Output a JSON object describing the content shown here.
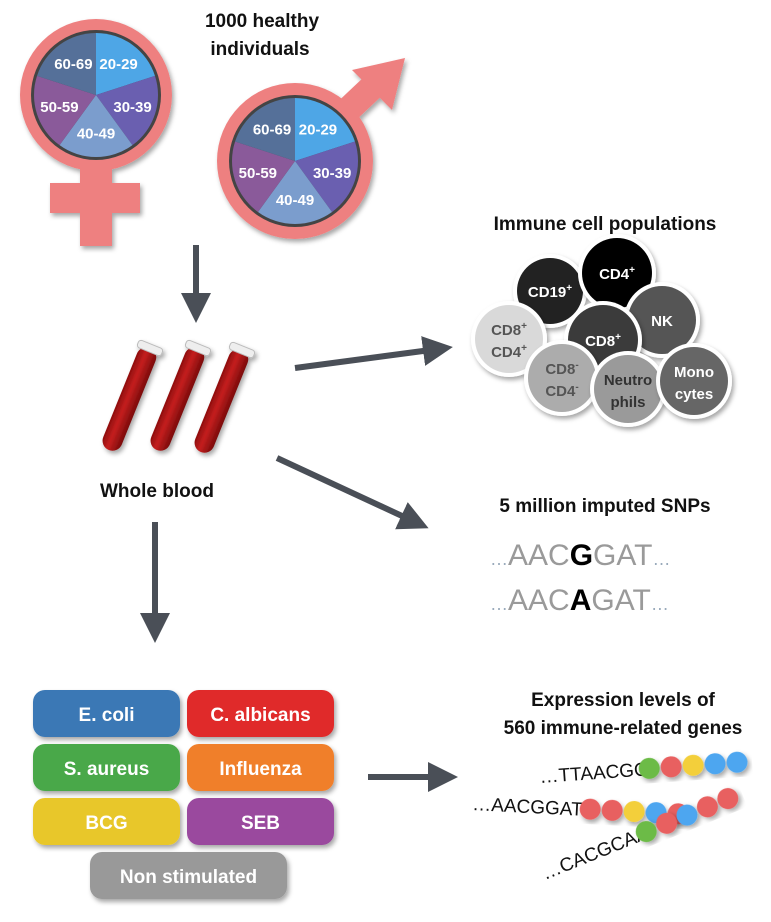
{
  "cohort": {
    "title_line1": "1000 healthy",
    "title_line2": "individuals",
    "age_groups": [
      "20-29",
      "30-39",
      "40-49",
      "50-59",
      "60-69"
    ],
    "age_colors": [
      "#4ea6e6",
      "#6a5fb0",
      "#7b9dcd",
      "#8a5a9a",
      "#557099"
    ],
    "symbol_color": "#ee8080"
  },
  "blood": {
    "label": "Whole blood"
  },
  "immune_cells": {
    "title": "Immune cell populations",
    "cells": [
      {
        "line1": "CD19",
        "sup1": "+",
        "line2": "",
        "sup2": "",
        "fill": "#222222",
        "text": "#ffffff"
      },
      {
        "line1": "CD4",
        "sup1": "+",
        "line2": "",
        "sup2": "",
        "fill": "#000000",
        "text": "#ffffff"
      },
      {
        "line1": "NK",
        "sup1": "",
        "line2": "",
        "sup2": "",
        "fill": "#555555",
        "text": "#ffffff"
      },
      {
        "line1": "CD8",
        "sup1": "+",
        "line2": "CD4",
        "sup2": "+",
        "fill": "#d9d9d9",
        "text": "#555555"
      },
      {
        "line1": "CD8",
        "sup1": "+",
        "line2": "",
        "sup2": "",
        "fill": "#3a3a3a",
        "text": "#ffffff"
      },
      {
        "line1": "CD8",
        "sup1": "-",
        "line2": "CD4",
        "sup2": "-",
        "fill": "#acacac",
        "text": "#555555"
      },
      {
        "line1": "Neutro",
        "sup1": "",
        "line2": "phils",
        "sup2": "",
        "fill": "#9a9a9a",
        "text": "#333333"
      },
      {
        "line1": "Mono",
        "sup1": "",
        "line2": "cytes",
        "sup2": "",
        "fill": "#666666",
        "text": "#ffffff"
      }
    ]
  },
  "snps": {
    "title": "5 million imputed SNPs",
    "seq1": {
      "prefix": "…",
      "left": "AAC",
      "allele": "G",
      "right": "GAT",
      "suffix": "…"
    },
    "seq2": {
      "prefix": "…",
      "left": "AAC",
      "allele": "A",
      "right": "GAT",
      "suffix": "…"
    }
  },
  "stimulations": [
    {
      "label": "E. coli",
      "color": "#3a78b5"
    },
    {
      "label": "C. albicans",
      "color": "#e02a2a"
    },
    {
      "label": "S. aureus",
      "color": "#4aa84a"
    },
    {
      "label": "Influenza",
      "color": "#f07f2a"
    },
    {
      "label": "BCG",
      "color": "#e8c72a"
    },
    {
      "label": "SEB",
      "color": "#9a4a9e"
    },
    {
      "label": "Non stimulated",
      "color": "#999999"
    }
  ],
  "expression": {
    "title_line1": "Expression levels of",
    "title_line2": "560 immune-related genes",
    "rows": [
      {
        "seq": "…TTAACGG",
        "beads": [
          "#6cbb47",
          "#e86060",
          "#f3cf3a",
          "#4ea6f0",
          "#4ea6f0"
        ]
      },
      {
        "seq": "…AACGGAT",
        "beads": [
          "#e86060",
          "#e86060",
          "#f3cf3a",
          "#4ea6f0",
          "#e86060"
        ]
      },
      {
        "seq": "…CACGCAA",
        "beads": [
          "#6cbb47",
          "#e86060",
          "#4ea6f0",
          "#e86060",
          "#e86060"
        ]
      }
    ]
  },
  "arrow_color": "#4a4f57"
}
